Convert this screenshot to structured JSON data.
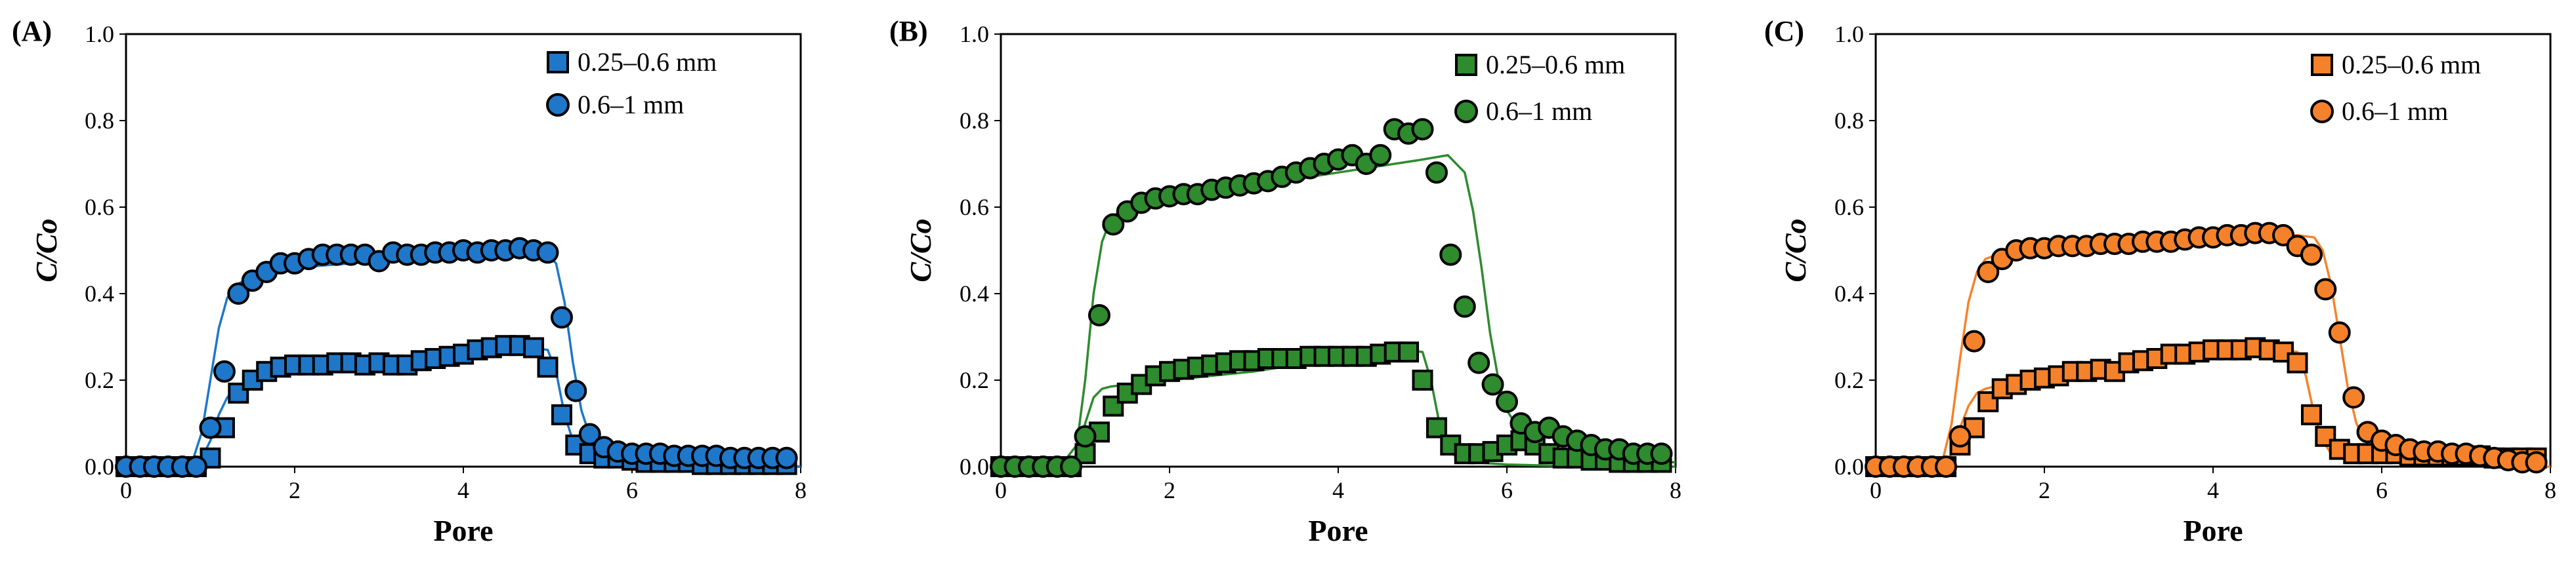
{
  "colors": {
    "A": "#1f77c9",
    "B": "#2e8b2e",
    "C": "#f5822a",
    "edge": "#000000"
  },
  "chart_data": [
    {
      "type": "scatter",
      "panel_label": "(A)",
      "xlabel": "Pore",
      "ylabel": "C/Co",
      "xlim": [
        0,
        8
      ],
      "ylim": [
        0,
        1.0
      ],
      "x_ticks": [
        "0",
        "2",
        "4",
        "6",
        "8"
      ],
      "y_ticks": [
        "0.0",
        "0.2",
        "0.4",
        "0.6",
        "0.8",
        "1.0"
      ],
      "legend_position": "top-right",
      "series": [
        {
          "name": "0.25–0.6 mm",
          "marker": "square",
          "x": [
            0,
            0.167,
            0.333,
            0.5,
            0.667,
            0.833,
            1.0,
            1.167,
            1.333,
            1.5,
            1.667,
            1.833,
            2.0,
            2.167,
            2.333,
            2.5,
            2.667,
            2.833,
            3.0,
            3.167,
            3.333,
            3.5,
            3.667,
            3.833,
            4.0,
            4.167,
            4.333,
            4.5,
            4.667,
            4.833,
            5.0,
            5.167,
            5.333,
            5.5,
            5.667,
            5.833,
            6.0,
            6.167,
            6.333,
            6.5,
            6.667,
            6.833,
            7.0,
            7.167,
            7.333,
            7.5,
            7.667,
            7.833
          ],
          "y": [
            0,
            0,
            0,
            0,
            0,
            0,
            0.02,
            0.09,
            0.17,
            0.2,
            0.22,
            0.23,
            0.235,
            0.235,
            0.235,
            0.24,
            0.24,
            0.235,
            0.24,
            0.235,
            0.235,
            0.245,
            0.25,
            0.255,
            0.26,
            0.27,
            0.275,
            0.28,
            0.28,
            0.275,
            0.23,
            0.12,
            0.05,
            0.03,
            0.02,
            0.02,
            0.015,
            0.01,
            0.01,
            0.01,
            0.01,
            0.005,
            0.005,
            0.005,
            0.005,
            0.005,
            0.005,
            0.005
          ]
        },
        {
          "name": "0.6–1 mm",
          "marker": "circle",
          "x": [
            0,
            0.167,
            0.333,
            0.5,
            0.667,
            0.833,
            1.0,
            1.167,
            1.333,
            1.5,
            1.667,
            1.833,
            2.0,
            2.167,
            2.333,
            2.5,
            2.667,
            2.833,
            3.0,
            3.167,
            3.333,
            3.5,
            3.667,
            3.833,
            4.0,
            4.167,
            4.333,
            4.5,
            4.667,
            4.833,
            5.0,
            5.167,
            5.333,
            5.5,
            5.667,
            5.833,
            6.0,
            6.167,
            6.333,
            6.5,
            6.667,
            6.833,
            7.0,
            7.167,
            7.333,
            7.5,
            7.667,
            7.833
          ],
          "y": [
            0,
            0,
            0,
            0,
            0,
            0,
            0.09,
            0.22,
            0.4,
            0.43,
            0.45,
            0.47,
            0.47,
            0.48,
            0.49,
            0.49,
            0.49,
            0.49,
            0.475,
            0.495,
            0.49,
            0.49,
            0.495,
            0.495,
            0.5,
            0.495,
            0.5,
            0.5,
            0.505,
            0.5,
            0.495,
            0.345,
            0.175,
            0.075,
            0.045,
            0.035,
            0.03,
            0.03,
            0.03,
            0.025,
            0.025,
            0.025,
            0.025,
            0.02,
            0.02,
            0.02,
            0.02,
            0.02
          ]
        }
      ],
      "fit_lines": [
        {
          "x": [
            0,
            0.5,
            0.8,
            0.9,
            1.0,
            1.1,
            1.2,
            1.3,
            1.5,
            2.0,
            3.0,
            4.0,
            4.8,
            5.0,
            5.1,
            5.2,
            5.3,
            5.5,
            5.8,
            6.5,
            8.0
          ],
          "y": [
            0,
            0,
            0.0,
            0.02,
            0.06,
            0.12,
            0.16,
            0.18,
            0.2,
            0.22,
            0.235,
            0.255,
            0.275,
            0.27,
            0.22,
            0.12,
            0.06,
            0.02,
            0.005,
            0,
            0
          ]
        },
        {
          "x": [
            0,
            0.6,
            0.8,
            0.9,
            1.0,
            1.1,
            1.2,
            1.3,
            1.5,
            2.0,
            3.0,
            4.0,
            4.8,
            5.0,
            5.1,
            5.2,
            5.3,
            5.4,
            5.5,
            5.7,
            6.0,
            7.0,
            8.0
          ],
          "y": [
            0,
            0,
            0.02,
            0.08,
            0.2,
            0.32,
            0.39,
            0.42,
            0.44,
            0.46,
            0.475,
            0.485,
            0.49,
            0.49,
            0.47,
            0.38,
            0.24,
            0.13,
            0.07,
            0.03,
            0.015,
            0.005,
            0
          ]
        }
      ]
    },
    {
      "type": "scatter",
      "panel_label": "(B)",
      "xlabel": "Pore",
      "ylabel": "C/Co",
      "xlim": [
        0,
        8
      ],
      "ylim": [
        0,
        1.0
      ],
      "x_ticks": [
        "0",
        "2",
        "4",
        "6",
        "8"
      ],
      "y_ticks": [
        "0.0",
        "0.2",
        "0.4",
        "0.6",
        "0.8",
        "1.0"
      ],
      "legend_position": "top-right",
      "series": [
        {
          "name": "0.25–0.6 mm",
          "marker": "square",
          "x": [
            0,
            0.167,
            0.333,
            0.5,
            0.667,
            0.833,
            1.0,
            1.167,
            1.333,
            1.5,
            1.667,
            1.833,
            2.0,
            2.167,
            2.333,
            2.5,
            2.667,
            2.833,
            3.0,
            3.167,
            3.333,
            3.5,
            3.667,
            3.833,
            4.0,
            4.167,
            4.333,
            4.5,
            4.667,
            4.833,
            5.0,
            5.167,
            5.333,
            5.5,
            5.667,
            5.833,
            6.0,
            6.167,
            6.333,
            6.5,
            6.667,
            6.833,
            7.0,
            7.167,
            7.333,
            7.5,
            7.667,
            7.833
          ],
          "y": [
            0,
            0,
            0,
            0,
            0,
            0,
            0.03,
            0.08,
            0.14,
            0.17,
            0.19,
            0.21,
            0.22,
            0.225,
            0.23,
            0.235,
            0.24,
            0.245,
            0.245,
            0.25,
            0.25,
            0.25,
            0.255,
            0.255,
            0.255,
            0.255,
            0.255,
            0.26,
            0.265,
            0.265,
            0.2,
            0.09,
            0.05,
            0.03,
            0.03,
            0.035,
            0.05,
            0.06,
            0.05,
            0.03,
            0.02,
            0.02,
            0.015,
            0.015,
            0.01,
            0.01,
            0.01,
            0.01
          ]
        },
        {
          "name": "0.6–1 mm",
          "marker": "circle",
          "x": [
            0,
            0.167,
            0.333,
            0.5,
            0.667,
            0.833,
            1.0,
            1.167,
            1.333,
            1.5,
            1.667,
            1.833,
            2.0,
            2.167,
            2.333,
            2.5,
            2.667,
            2.833,
            3.0,
            3.167,
            3.333,
            3.5,
            3.667,
            3.833,
            4.0,
            4.167,
            4.333,
            4.5,
            4.667,
            4.833,
            5.0,
            5.167,
            5.333,
            5.5,
            5.667,
            5.833,
            6.0,
            6.167,
            6.333,
            6.5,
            6.667,
            6.833,
            7.0,
            7.167,
            7.333,
            7.5,
            7.667,
            7.833
          ],
          "y": [
            0,
            0,
            0,
            0,
            0,
            0,
            0.07,
            0.35,
            0.56,
            0.59,
            0.61,
            0.62,
            0.625,
            0.63,
            0.63,
            0.64,
            0.645,
            0.65,
            0.655,
            0.66,
            0.67,
            0.68,
            0.69,
            0.7,
            0.71,
            0.72,
            0.7,
            0.72,
            0.78,
            0.77,
            0.78,
            0.68,
            0.49,
            0.37,
            0.24,
            0.19,
            0.15,
            0.1,
            0.08,
            0.09,
            0.07,
            0.06,
            0.05,
            0.04,
            0.04,
            0.03,
            0.03,
            0.03
          ]
        }
      ],
      "fit_lines": [
        {
          "x": [
            0,
            0.6,
            0.8,
            0.9,
            1.0,
            1.1,
            1.2,
            1.3,
            1.5,
            2.0,
            3.0,
            4.0,
            4.8,
            5.0,
            5.1,
            5.2,
            5.3,
            5.4,
            5.6,
            6.0,
            7.0,
            8.0
          ],
          "y": [
            0,
            0,
            0.0,
            0.03,
            0.1,
            0.16,
            0.18,
            0.185,
            0.19,
            0.2,
            0.22,
            0.25,
            0.27,
            0.265,
            0.2,
            0.1,
            0.05,
            0.02,
            0.01,
            0.005,
            0,
            0
          ]
        },
        {
          "x": [
            0,
            0.7,
            0.9,
            1.0,
            1.1,
            1.2,
            1.3,
            1.4,
            1.6,
            2.0,
            3.0,
            4.0,
            5.0,
            5.3,
            5.5,
            5.6,
            5.7,
            5.8,
            5.9,
            6.0,
            6.2,
            6.5,
            7.0,
            8.0
          ],
          "y": [
            0,
            0,
            0.05,
            0.2,
            0.4,
            0.52,
            0.57,
            0.59,
            0.6,
            0.61,
            0.65,
            0.68,
            0.71,
            0.72,
            0.68,
            0.59,
            0.46,
            0.31,
            0.2,
            0.13,
            0.07,
            0.04,
            0.02,
            0.01
          ]
        }
      ]
    },
    {
      "type": "scatter",
      "panel_label": "(C)",
      "xlabel": "Pore",
      "ylabel": "C/Co",
      "xlim": [
        0,
        8
      ],
      "ylim": [
        0,
        1.0
      ],
      "x_ticks": [
        "0",
        "2",
        "4",
        "6",
        "8"
      ],
      "y_ticks": [
        "0.0",
        "0.2",
        "0.4",
        "0.6",
        "0.8",
        "1.0"
      ],
      "legend_position": "top-right",
      "series": [
        {
          "name": "0.25–0.6 mm",
          "marker": "square",
          "x": [
            0,
            0.167,
            0.333,
            0.5,
            0.667,
            0.833,
            1.0,
            1.167,
            1.333,
            1.5,
            1.667,
            1.833,
            2.0,
            2.167,
            2.333,
            2.5,
            2.667,
            2.833,
            3.0,
            3.167,
            3.333,
            3.5,
            3.667,
            3.833,
            4.0,
            4.167,
            4.333,
            4.5,
            4.667,
            4.833,
            5.0,
            5.167,
            5.333,
            5.5,
            5.667,
            5.833,
            6.0,
            6.167,
            6.333,
            6.5,
            6.667,
            6.833,
            7.0,
            7.167,
            7.333,
            7.5,
            7.667,
            7.833
          ],
          "y": [
            0,
            0,
            0,
            0,
            0,
            0,
            0.05,
            0.09,
            0.15,
            0.18,
            0.19,
            0.2,
            0.205,
            0.21,
            0.22,
            0.22,
            0.225,
            0.22,
            0.24,
            0.245,
            0.25,
            0.26,
            0.26,
            0.265,
            0.27,
            0.27,
            0.27,
            0.275,
            0.27,
            0.265,
            0.24,
            0.12,
            0.07,
            0.04,
            0.03,
            0.03,
            0.03,
            0.03,
            0.025,
            0.025,
            0.025,
            0.025,
            0.025,
            0.025,
            0.02,
            0.02,
            0.02,
            0.02
          ]
        },
        {
          "name": "0.6–1 mm",
          "marker": "circle",
          "x": [
            0,
            0.167,
            0.333,
            0.5,
            0.667,
            0.833,
            1.0,
            1.167,
            1.333,
            1.5,
            1.667,
            1.833,
            2.0,
            2.167,
            2.333,
            2.5,
            2.667,
            2.833,
            3.0,
            3.167,
            3.333,
            3.5,
            3.667,
            3.833,
            4.0,
            4.167,
            4.333,
            4.5,
            4.667,
            4.833,
            5.0,
            5.167,
            5.333,
            5.5,
            5.667,
            5.833,
            6.0,
            6.167,
            6.333,
            6.5,
            6.667,
            6.833,
            7.0,
            7.167,
            7.333,
            7.5,
            7.667,
            7.833
          ],
          "y": [
            0,
            0,
            0,
            0,
            0,
            0,
            0.07,
            0.29,
            0.45,
            0.48,
            0.5,
            0.505,
            0.505,
            0.51,
            0.51,
            0.51,
            0.515,
            0.515,
            0.515,
            0.52,
            0.52,
            0.52,
            0.525,
            0.53,
            0.53,
            0.535,
            0.535,
            0.54,
            0.54,
            0.535,
            0.51,
            0.49,
            0.41,
            0.31,
            0.16,
            0.08,
            0.06,
            0.05,
            0.04,
            0.035,
            0.035,
            0.03,
            0.03,
            0.025,
            0.02,
            0.015,
            0.01,
            0.01
          ]
        }
      ],
      "fit_lines": [
        {
          "x": [
            0,
            0.6,
            0.8,
            0.9,
            1.0,
            1.1,
            1.2,
            1.3,
            1.5,
            2.0,
            3.0,
            4.0,
            4.8,
            5.0,
            5.1,
            5.2,
            5.3,
            5.4,
            5.6,
            6.0,
            7.0,
            8.0
          ],
          "y": [
            0,
            0,
            0.0,
            0.03,
            0.09,
            0.14,
            0.17,
            0.18,
            0.19,
            0.2,
            0.235,
            0.26,
            0.27,
            0.265,
            0.21,
            0.12,
            0.06,
            0.03,
            0.015,
            0.01,
            0.005,
            0
          ]
        },
        {
          "x": [
            0,
            0.6,
            0.8,
            0.9,
            1.0,
            1.1,
            1.2,
            1.3,
            1.5,
            2.0,
            3.0,
            4.0,
            5.0,
            5.2,
            5.3,
            5.4,
            5.5,
            5.6,
            5.7,
            5.8,
            6.0,
            6.5,
            7.0,
            8.0
          ],
          "y": [
            0,
            0,
            0.02,
            0.1,
            0.25,
            0.38,
            0.45,
            0.48,
            0.495,
            0.505,
            0.515,
            0.525,
            0.535,
            0.53,
            0.5,
            0.42,
            0.3,
            0.18,
            0.1,
            0.06,
            0.03,
            0.015,
            0.005,
            0
          ]
        }
      ]
    }
  ]
}
